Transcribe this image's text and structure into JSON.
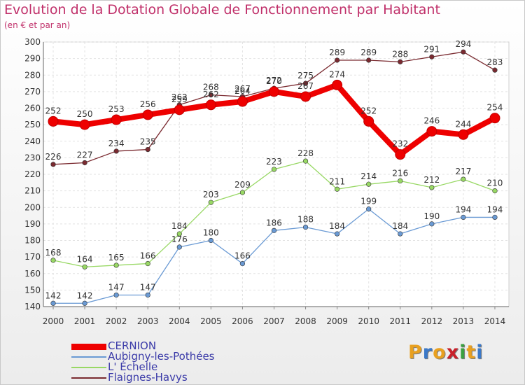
{
  "title": "Evolution de la Dotation Globale de Fonctionnement par Habitant",
  "subtitle": "(en € et par an)",
  "brand": {
    "letters": [
      "P",
      "r",
      "o",
      "x",
      "i",
      "t",
      "i"
    ],
    "colors": [
      "#e8a020",
      "#3a78c8",
      "#e8a020",
      "#c8202a",
      "#3aa040",
      "#e8a020",
      "#3a78c8"
    ]
  },
  "chart_data": {
    "type": "line",
    "title": "Evolution de la Dotation Globale de Fonctionnement par Habitant",
    "subtitle": "(en € et par an)",
    "xlabel": "",
    "ylabel": "",
    "ylim": [
      140,
      300
    ],
    "yticks": [
      "140",
      "150",
      "160",
      "170",
      "180",
      "190",
      "200",
      "210",
      "220",
      "230",
      "240",
      "250",
      "260",
      "270",
      "280",
      "290",
      "300"
    ],
    "categories": [
      "2000",
      "2001",
      "2002",
      "2003",
      "2004",
      "2005",
      "2006",
      "2007",
      "2008",
      "2009",
      "2010",
      "2011",
      "2012",
      "2013",
      "2014"
    ],
    "grid": true,
    "legend_position": "bottom-left",
    "series": [
      {
        "name": "Flaignes-Havys",
        "color": "#7a2a30",
        "values": [
          226,
          227,
          234,
          235,
          262,
          268,
          267,
          272,
          275,
          289,
          289,
          288,
          291,
          294,
          283
        ],
        "labels": [
          "226",
          "227",
          "234",
          "235",
          "262",
          "268",
          "267",
          "272",
          "275",
          "289",
          "289",
          "288",
          "291",
          "294",
          "283"
        ]
      },
      {
        "name": "L' Échelle",
        "color": "#98d864",
        "values": [
          168,
          164,
          165,
          166,
          184,
          203,
          209,
          223,
          228,
          211,
          214,
          216,
          212,
          217,
          210
        ],
        "labels": [
          "168",
          "164",
          "165",
          "166",
          "184",
          "203",
          "209",
          "223",
          "228",
          "211",
          "214",
          "216",
          "212",
          "217",
          "210"
        ]
      },
      {
        "name": "Aubigny-les-Pothées",
        "color": "#6a9ad4",
        "values": [
          142,
          142,
          147,
          147,
          176,
          180,
          166,
          186,
          188,
          184,
          199,
          184,
          190,
          194,
          194
        ],
        "labels": [
          "142",
          "142",
          "147",
          "147",
          "176",
          "180",
          "166",
          "186",
          "188",
          "184",
          "199",
          "184",
          "190",
          "194",
          "194"
        ]
      },
      {
        "name": "CERNION",
        "color": "#ee0000",
        "values": [
          252,
          250,
          253,
          256,
          259,
          262,
          264,
          270,
          267,
          274,
          252,
          232,
          246,
          244,
          254
        ],
        "labels": [
          "252",
          "250",
          "253",
          "256",
          "259",
          "262",
          "264",
          "270",
          "267",
          "274",
          "252",
          "232",
          "246",
          "244",
          "254"
        ]
      }
    ],
    "legend": [
      "CERNION",
      "Aubigny-les-Pothées",
      "L' Échelle",
      "Flaignes-Havys"
    ]
  }
}
